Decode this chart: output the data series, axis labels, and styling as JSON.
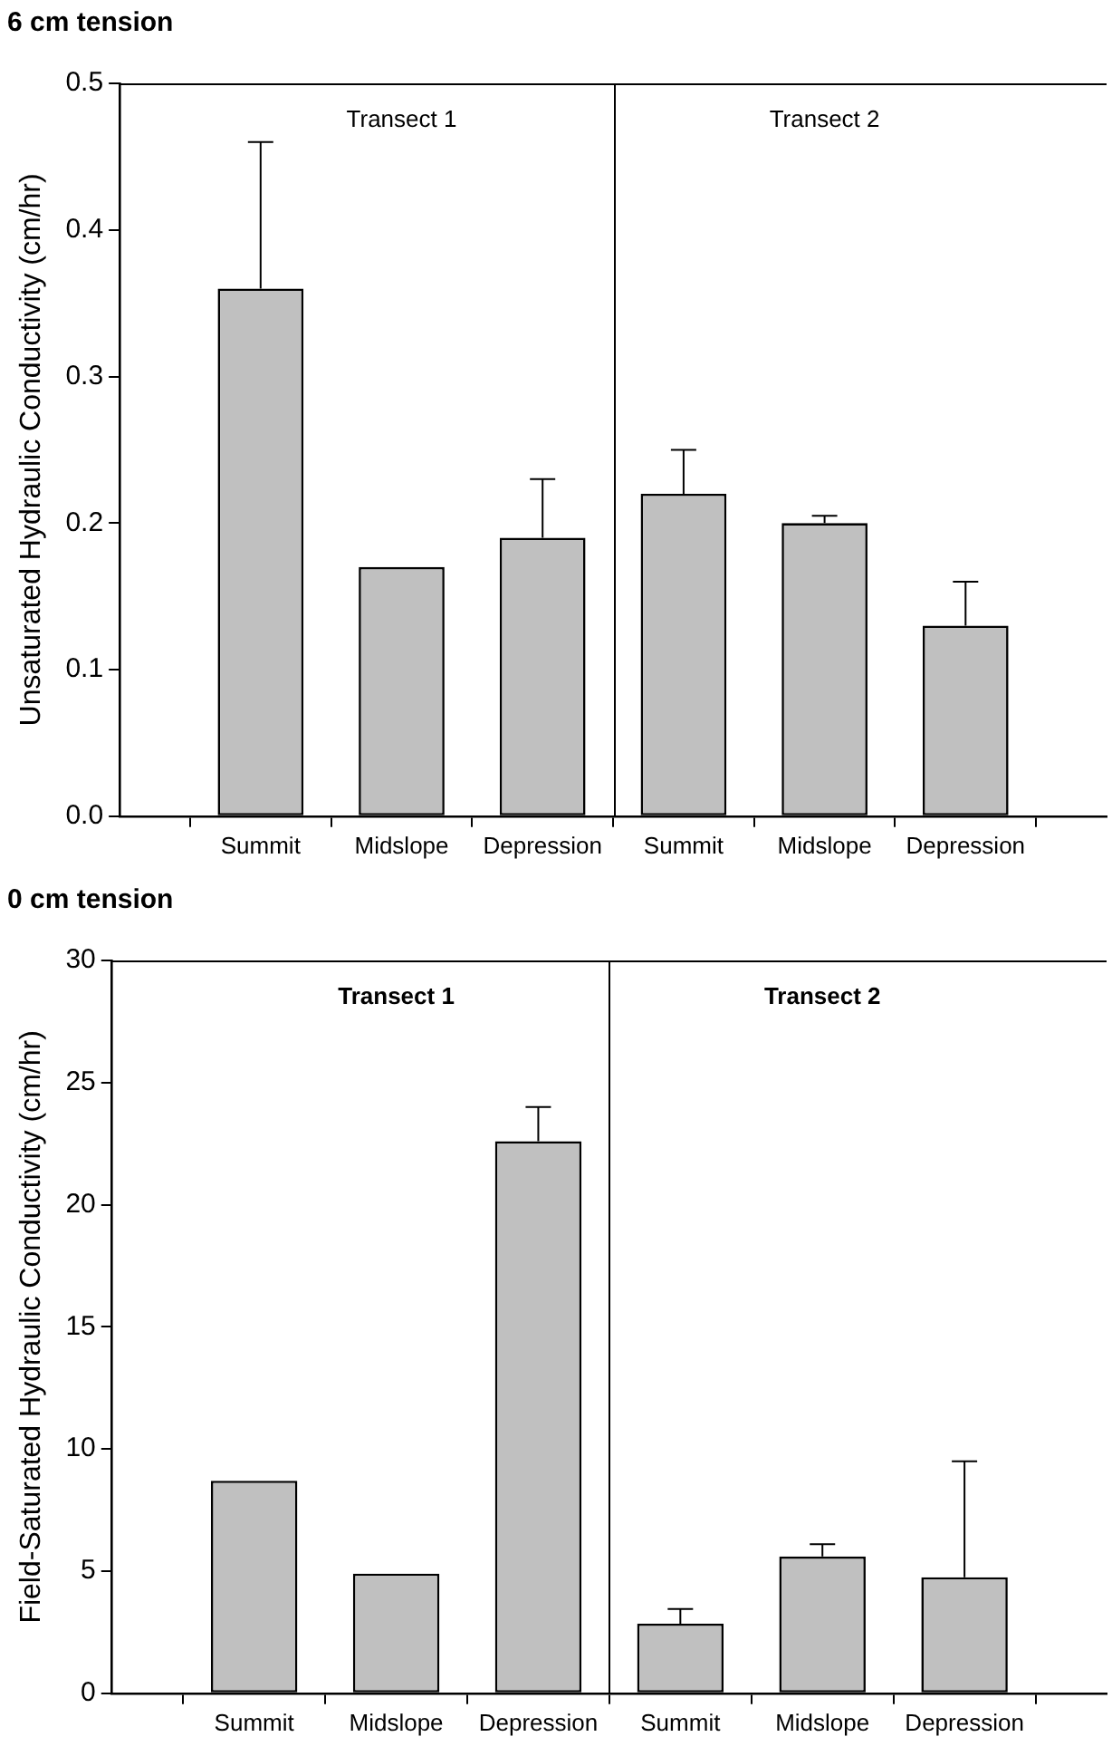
{
  "chart_data": [
    {
      "type": "bar",
      "title": "6 cm tension",
      "ylabel": "Unsaturated Hydraulic Conductivity (cm/hr)",
      "categories": [
        null,
        "Summit",
        "Midslope",
        "Depression",
        "Summit",
        "Midslope",
        "Depression",
        null
      ],
      "values": [
        null,
        0.36,
        0.17,
        0.19,
        0.22,
        0.2,
        0.13,
        null
      ],
      "errors": [
        null,
        [
          0.36,
          0.46
        ],
        null,
        [
          0.19,
          0.23
        ],
        [
          0.22,
          0.25
        ],
        [
          0.2,
          0.205
        ],
        [
          0.13,
          0.16
        ],
        null
      ],
      "color": "#c0c0c0",
      "ylim": [
        0,
        0.5
      ],
      "yticks": [
        {
          "value": 0,
          "label": "0.0"
        },
        0.1,
        0.2,
        0.3,
        0.4,
        0.5
      ],
      "grid": false,
      "legend": false,
      "annotations": [
        "Transect 1",
        "Transect 2"
      ]
    },
    {
      "type": "bar",
      "title": "0 cm tension",
      "ylabel": "Field-Saturated Hydraulic Conductivity (cm/hr)",
      "categories": [
        null,
        "Summit",
        "Midslope",
        "Depression",
        "Summit",
        "Midslope",
        "Depression",
        null
      ],
      "values": [
        null,
        8.7,
        4.9,
        22.6,
        2.85,
        5.6,
        4.75,
        null
      ],
      "errors": [
        null,
        null,
        null,
        [
          22.6,
          24.0
        ],
        [
          2.85,
          3.45
        ],
        [
          5.6,
          6.1
        ],
        [
          4.75,
          9.5
        ],
        null
      ],
      "color": "#c0c0c0",
      "ylim": [
        0,
        30
      ],
      "yticks": [
        0,
        5,
        10,
        15,
        20,
        25,
        30
      ],
      "grid": false,
      "legend": false,
      "annotations": [
        "Transect 1",
        "Transect 2"
      ]
    }
  ]
}
